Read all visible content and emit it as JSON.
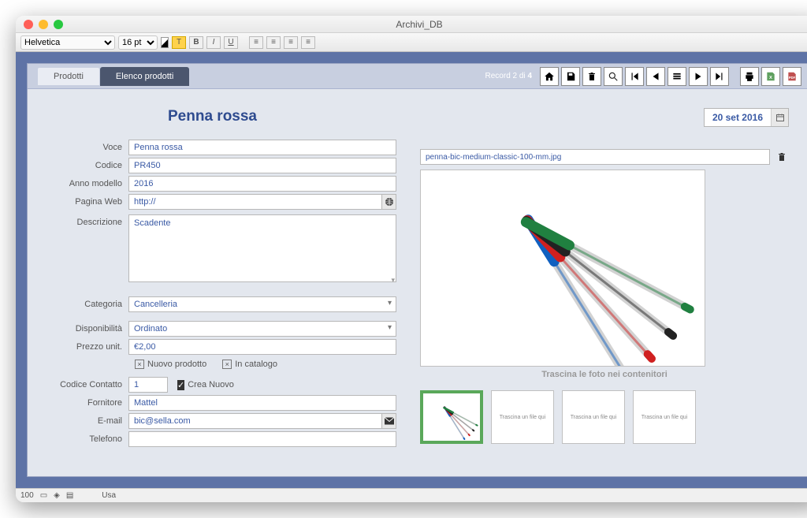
{
  "window": {
    "title": "Archivi_DB"
  },
  "formatbar": {
    "font": "Helvetica",
    "size": "16 pt"
  },
  "tabs": {
    "inactive": "Prodotti",
    "active": "Elenco prodotti"
  },
  "record": {
    "text": "Record 2 di",
    "total": "4"
  },
  "page_title": "Penna rossa",
  "date": "20 set 2016",
  "fields": {
    "voce": {
      "label": "Voce",
      "value": "Penna rossa"
    },
    "codice": {
      "label": "Codice",
      "value": "PR450"
    },
    "anno": {
      "label": "Anno modello",
      "value": "2016"
    },
    "web": {
      "label": "Pagina Web",
      "value": "http://"
    },
    "descr": {
      "label": "Descrizione",
      "value": "Scadente"
    },
    "categoria": {
      "label": "Categoria",
      "value": "Cancelleria"
    },
    "dispon": {
      "label": "Disponibilità",
      "value": "Ordinato"
    },
    "prezzo": {
      "label": "Prezzo unit.",
      "value": "€2,00"
    },
    "codcontatto": {
      "label": "Codice Contatto",
      "value": "1"
    },
    "fornitore": {
      "label": "Fornitore",
      "value": "Mattel"
    },
    "email": {
      "label": "E-mail",
      "value": "bic@sella.com"
    },
    "telefono": {
      "label": "Telefono",
      "value": ""
    }
  },
  "checks": {
    "nuovo": {
      "label": "Nuovo prodotto",
      "mark": "×"
    },
    "catalogo": {
      "label": "In catalogo",
      "mark": "×"
    },
    "crea": {
      "label": "Crea Nuovo",
      "checked": true
    }
  },
  "image": {
    "filename": "penna-bic-medium-classic-100-mm.jpg",
    "hint": "Trascina le foto nei contenitori",
    "empty_hint": "Trascina un file qui",
    "colors": [
      "#1060c0",
      "#d02020",
      "#222222",
      "#208040"
    ]
  },
  "statusbar": {
    "zoom": "100",
    "mode": "Usa"
  },
  "theme": {
    "outer_bg": "#5e73a6",
    "panel_bg": "#e3e7ee",
    "header_bg": "#c8cfe0",
    "active_tab": "#4b566e",
    "title_color": "#2e4b8f",
    "input_text": "#3a5aa5"
  }
}
